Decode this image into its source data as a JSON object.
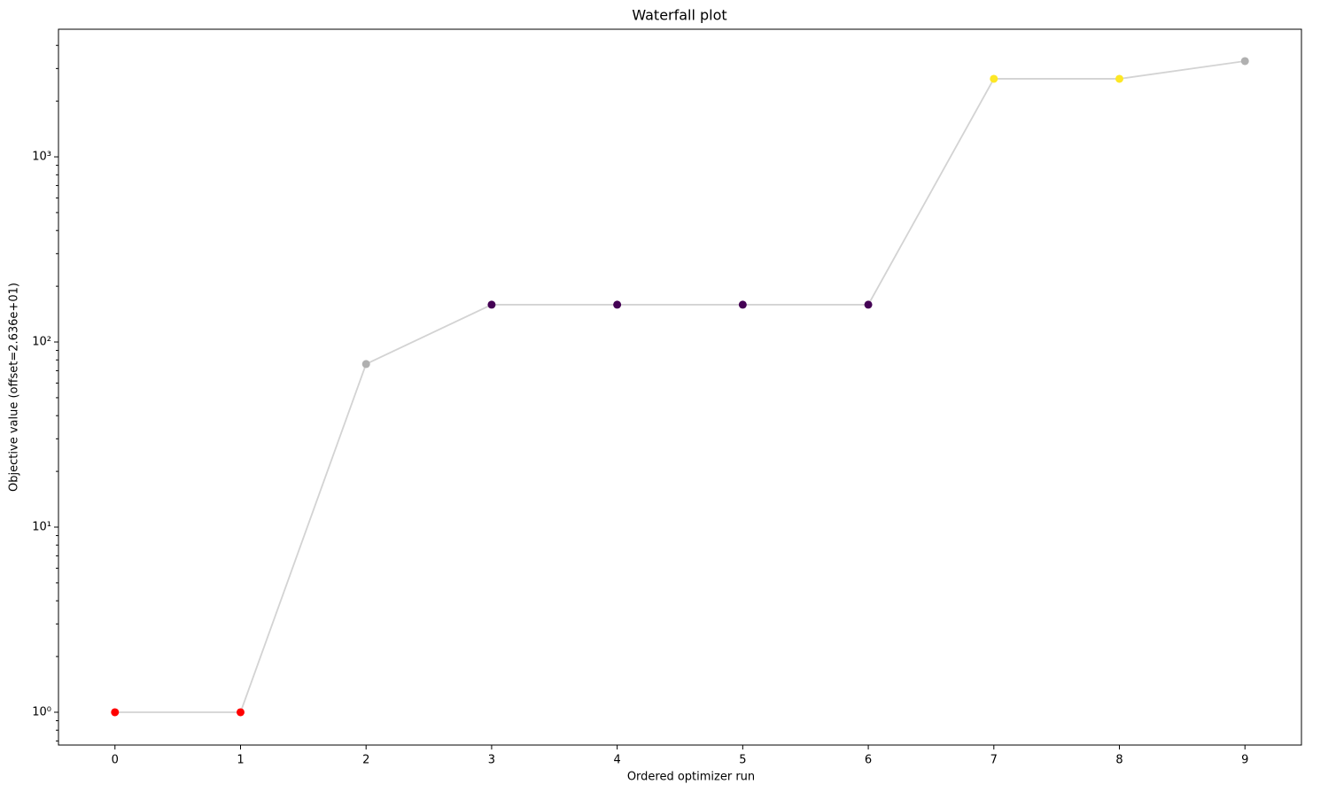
{
  "chart_data": {
    "type": "line",
    "title": "Waterfall plot",
    "x_label": "Ordered optimizer run",
    "y_label": "Objective value (offset=2.636e+01)",
    "x": [
      0,
      1,
      2,
      3,
      4,
      5,
      6,
      7,
      8,
      9
    ],
    "series": [
      {
        "color": "#d3d3d3",
        "values": [
          1,
          1,
          76,
          159,
          159,
          159,
          159,
          2640,
          2640,
          3290
        ],
        "point_colors": [
          "#ff0000",
          "#ff0000",
          "#b0b0b0",
          "#440154",
          "#440154",
          "#440154",
          "#440154",
          "#fde725",
          "#fde725",
          "#b0b0b0"
        ]
      }
    ],
    "xlim": [
      -0.45,
      9.45
    ],
    "xticks": [
      0,
      1,
      2,
      3,
      4,
      5,
      6,
      7,
      8,
      9
    ],
    "ylim": [
      0.665,
      4890
    ],
    "y_scale": "log",
    "yticks": [
      {
        "value": 1,
        "label": "10⁰"
      },
      {
        "value": 10,
        "label": "10¹"
      },
      {
        "value": 100,
        "label": "10²"
      },
      {
        "value": 1000,
        "label": "10³"
      }
    ],
    "grid": false
  }
}
